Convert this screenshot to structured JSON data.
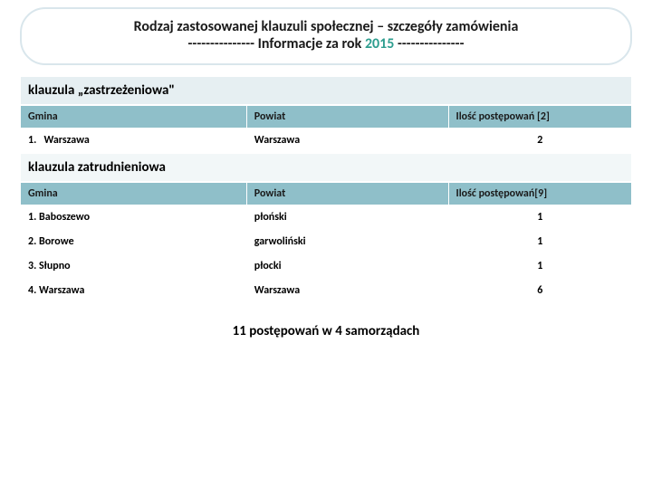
{
  "header": {
    "title": "Rodzaj zastosowanej klauzuli społecznej – szczegóły zamówienia",
    "subtitle_prefix": "--------------- Informacje za rok ",
    "year": "2015",
    "subtitle_suffix": " ---------------"
  },
  "section1": {
    "title": "klauzula „zastrzeżeniowa\"",
    "columns": {
      "gmina": "Gmina",
      "powiat": "Powiat",
      "count": "Ilość postępowań [2]"
    },
    "rows": [
      {
        "idx": "1.",
        "gmina": "Warszawa",
        "powiat": "Warszawa",
        "count": "2"
      }
    ]
  },
  "section2": {
    "title": "klauzula zatrudnieniowa",
    "columns": {
      "gmina": "Gmina",
      "powiat": "Powiat",
      "count": "Ilość postępowań[9]"
    },
    "rows": [
      {
        "gmina": "1. Baboszewo",
        "powiat": "płoński",
        "count": "1"
      },
      {
        "gmina": "2. Borowe",
        "powiat": "garwoliński",
        "count": "1"
      },
      {
        "gmina": "3. Słupno",
        "powiat": "płocki",
        "count": "1"
      },
      {
        "gmina": "4. Warszawa",
        "powiat": "Warszawa",
        "count": "6"
      }
    ]
  },
  "summary": "11 postępowań w 4 samorządach",
  "colors": {
    "header_bg": "#8fbfc9",
    "section_bg": "#e6eff2",
    "accent": "#2e9e8f",
    "border": "#d9e6ec"
  }
}
